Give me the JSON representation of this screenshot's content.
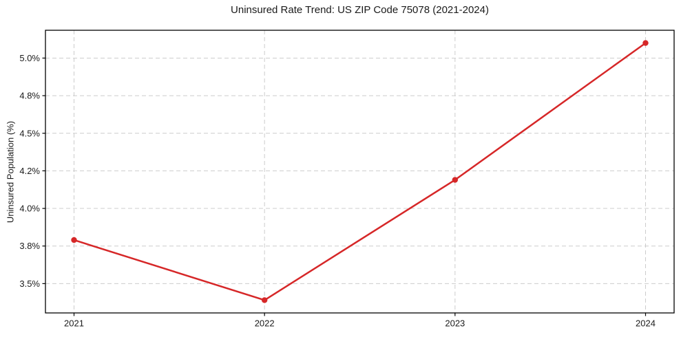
{
  "chart_data": {
    "type": "line",
    "title": "Uninsured Rate Trend: US ZIP Code 75078 (2021-2024)",
    "xlabel": "",
    "ylabel": "Uninsured Population (%)",
    "x": [
      2021,
      2022,
      2023,
      2024
    ],
    "values": [
      3.79,
      3.39,
      4.19,
      5.1
    ],
    "xticks": {
      "values": [
        2021,
        2022,
        2023,
        2024
      ],
      "labels": [
        "2021",
        "2022",
        "2023",
        "2024"
      ]
    },
    "yticks": {
      "values": [
        3.5,
        3.75,
        4.0,
        4.25,
        4.5,
        4.75,
        5.0
      ],
      "labels": [
        "3.5%",
        "3.8%",
        "4.0%",
        "4.2%",
        "4.5%",
        "4.8%",
        "5.0%"
      ]
    },
    "xlim": [
      2020.85,
      2024.15
    ],
    "ylim": [
      3.305,
      5.185
    ],
    "grid": true,
    "legend": "none",
    "styles": {
      "line_color": "#d62728",
      "line_width": 2.5,
      "marker_radius": 4.2,
      "grid_color": "#cccccc",
      "spine_color": "#000000",
      "tick_color": "#1a1a1a",
      "text_color": "#1a1a1a",
      "background": "#ffffff"
    }
  }
}
